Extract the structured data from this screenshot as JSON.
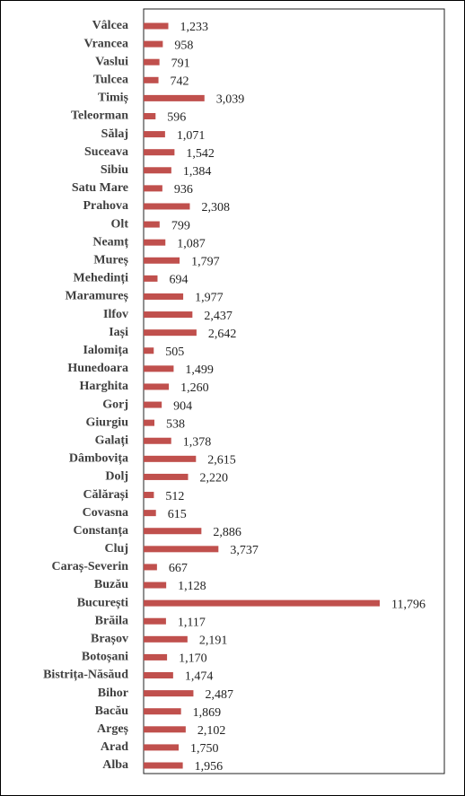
{
  "chart_data": {
    "type": "bar",
    "orientation": "horizontal",
    "color": "#c0504d",
    "categories": [
      "Vâlcea",
      "Vrancea",
      "Vaslui",
      "Tulcea",
      "Timiș",
      "Teleorman",
      "Sălaj",
      "Suceava",
      "Sibiu",
      "Satu Mare",
      "Prahova",
      "Olt",
      "Neamț",
      "Mureș",
      "Mehedinți",
      "Maramureș",
      "Ilfov",
      "Iași",
      "Ialomița",
      "Hunedoara",
      "Harghita",
      "Gorj",
      "Giurgiu",
      "Galați",
      "Dâmbovița",
      "Dolj",
      "Călărași",
      "Covasna",
      "Constanța",
      "Cluj",
      "Caraș-Severin",
      "Buzău",
      "București",
      "Brăila",
      "Brașov",
      "Botoșani",
      "Bistrița-Năsăud",
      "Bihor",
      "Bacău",
      "Argeș",
      "Arad",
      "Alba"
    ],
    "values": [
      1233,
      958,
      791,
      742,
      3039,
      596,
      1071,
      1542,
      1384,
      936,
      2308,
      799,
      1087,
      1797,
      694,
      1977,
      2437,
      2642,
      505,
      1499,
      1260,
      904,
      538,
      1378,
      2615,
      2220,
      512,
      615,
      2886,
      3737,
      667,
      1128,
      11796,
      1117,
      2191,
      1170,
      1474,
      2487,
      1869,
      2102,
      1750,
      1956
    ],
    "value_labels": [
      "1,233",
      "958",
      "791",
      "742",
      "3,039",
      "596",
      "1,071",
      "1,542",
      "1,384",
      "936",
      "2,308",
      "799",
      "1,087",
      "1,797",
      "694",
      "1,977",
      "2,437",
      "2,642",
      "505",
      "1,499",
      "1,260",
      "904",
      "538",
      "1,378",
      "2,615",
      "2,220",
      "512",
      "615",
      "2,886",
      "3,737",
      "667",
      "1,128",
      "11,796",
      "1,117",
      "2,191",
      "1,170",
      "1,474",
      "2,487",
      "1,869",
      "2,102",
      "1,750",
      "1,956"
    ]
  }
}
